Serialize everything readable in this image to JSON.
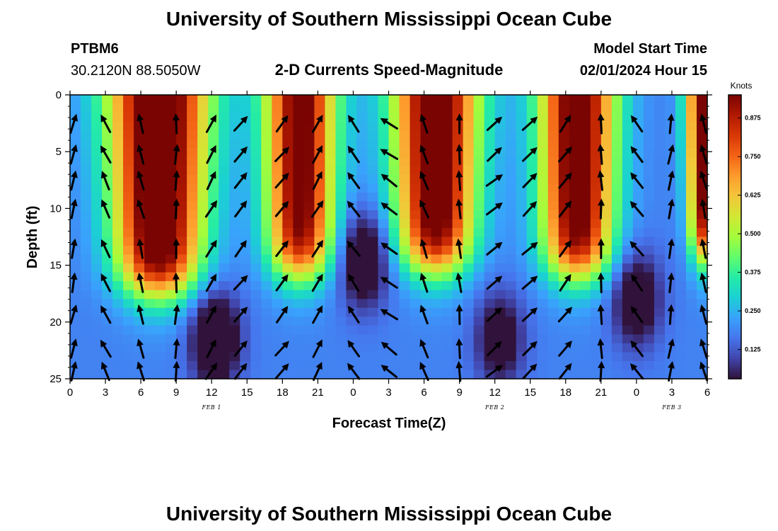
{
  "page": {
    "title": "University of Southern Mississippi Ocean Cube",
    "footer_title": "University of Southern Mississippi Ocean Cube",
    "station": "PTBM6",
    "coords": "30.2120N  88.5050W",
    "subtitle": "2-D Currents Speed-Magnitude",
    "model_start_label": "Model Start Time",
    "model_start_value": "02/01/2024 Hour 15"
  },
  "chart_data": {
    "type": "heatmap",
    "title": "2-D Currents Speed-Magnitude",
    "xlabel": "Forecast Time(Z)",
    "ylabel": "Depth (ft)",
    "x_ticks": [
      "0",
      "3",
      "6",
      "9",
      "12",
      "15",
      "18",
      "21",
      "0",
      "3",
      "6",
      "9",
      "12",
      "15",
      "18",
      "21",
      "0",
      "3",
      "6"
    ],
    "date_labels": [
      {
        "label": "FEB 1",
        "tick_index": 4
      },
      {
        "label": "FEB 2",
        "tick_index": 12
      },
      {
        "label": "FEB 3",
        "tick_index": 17
      }
    ],
    "xlim": [
      0,
      54
    ],
    "y_ticks": [
      0,
      5,
      10,
      15,
      20,
      25
    ],
    "ylim": [
      0,
      25
    ],
    "y_inverted": true,
    "colorbar": {
      "unit": "Knots",
      "ticks": [
        "0.875",
        "0.750",
        "0.625",
        "0.500",
        "0.375",
        "0.250",
        "0.125"
      ],
      "tick_values": [
        0.875,
        0.75,
        0.625,
        0.5,
        0.375,
        0.25,
        0.125
      ],
      "range": [
        0.03,
        0.95
      ],
      "colors": [
        "#30123b",
        "#4145ab",
        "#4675ed",
        "#39a2fc",
        "#1bcfd4",
        "#24eca6",
        "#61fc6c",
        "#a4fc3b",
        "#d1e834",
        "#f3c63a",
        "#fe9b2d",
        "#f36315",
        "#d93806",
        "#b11901",
        "#7a0402"
      ]
    },
    "speed_peaks": [
      {
        "time_h": 7.5,
        "amplitude": 0.93,
        "surface_width_h": 4.2,
        "deep_width_h": 3.0,
        "bottom_depth_ft": 17
      },
      {
        "time_h": 19.5,
        "amplitude": 0.82,
        "surface_width_h": 3.0,
        "deep_width_h": 2.4,
        "bottom_depth_ft": 15.5
      },
      {
        "time_h": 31.0,
        "amplitude": 0.88,
        "surface_width_h": 3.6,
        "deep_width_h": 2.6,
        "bottom_depth_ft": 15
      },
      {
        "time_h": 43.0,
        "amplitude": 0.86,
        "surface_width_h": 3.2,
        "deep_width_h": 2.6,
        "bottom_depth_ft": 15.5
      },
      {
        "time_h": 53.7,
        "amplitude": 0.8,
        "surface_width_h": 1.5,
        "deep_width_h": 0.9,
        "bottom_depth_ft": 14
      }
    ],
    "speed_troughs": [
      {
        "time_h": 12.3,
        "depth_ft": 21.5,
        "amount": 0.32
      },
      {
        "time_h": 24.9,
        "depth_ft": 14.5,
        "amount": 0.28
      },
      {
        "time_h": 36.4,
        "depth_ft": 21.5,
        "amount": 0.22
      },
      {
        "time_h": 48.0,
        "depth_ft": 18.0,
        "amount": 0.25
      }
    ],
    "vector_times_h": [
      0.3,
      3,
      6,
      9,
      12,
      14.5,
      18,
      21,
      24,
      27,
      30,
      33,
      36,
      39,
      42,
      45,
      48,
      50.9,
      53.7
    ],
    "vector_depths_ft": [
      2.5,
      5.2,
      7.5,
      10,
      13.5,
      16.5,
      19.3,
      22.3,
      24.3
    ],
    "vector_phase_anchors": [
      {
        "time_h": 0,
        "angle_deg": 70
      },
      {
        "time_h": 2,
        "angle_deg": 120
      },
      {
        "time_h": 8,
        "angle_deg": 97
      },
      {
        "time_h": 12,
        "angle_deg": 60
      },
      {
        "time_h": 16,
        "angle_deg": 45
      },
      {
        "time_h": 21,
        "angle_deg": 60
      },
      {
        "time_h": 26,
        "angle_deg": 170
      },
      {
        "time_h": 28,
        "angle_deg": 120
      },
      {
        "time_h": 33,
        "angle_deg": 95
      },
      {
        "time_h": 36,
        "angle_deg": 40
      },
      {
        "time_h": 40,
        "angle_deg": 45
      },
      {
        "time_h": 44,
        "angle_deg": 60
      },
      {
        "time_h": 47,
        "angle_deg": 155
      },
      {
        "time_h": 49,
        "angle_deg": 100
      },
      {
        "time_h": 52,
        "angle_deg": 70
      },
      {
        "time_h": 54,
        "angle_deg": 110
      }
    ]
  }
}
